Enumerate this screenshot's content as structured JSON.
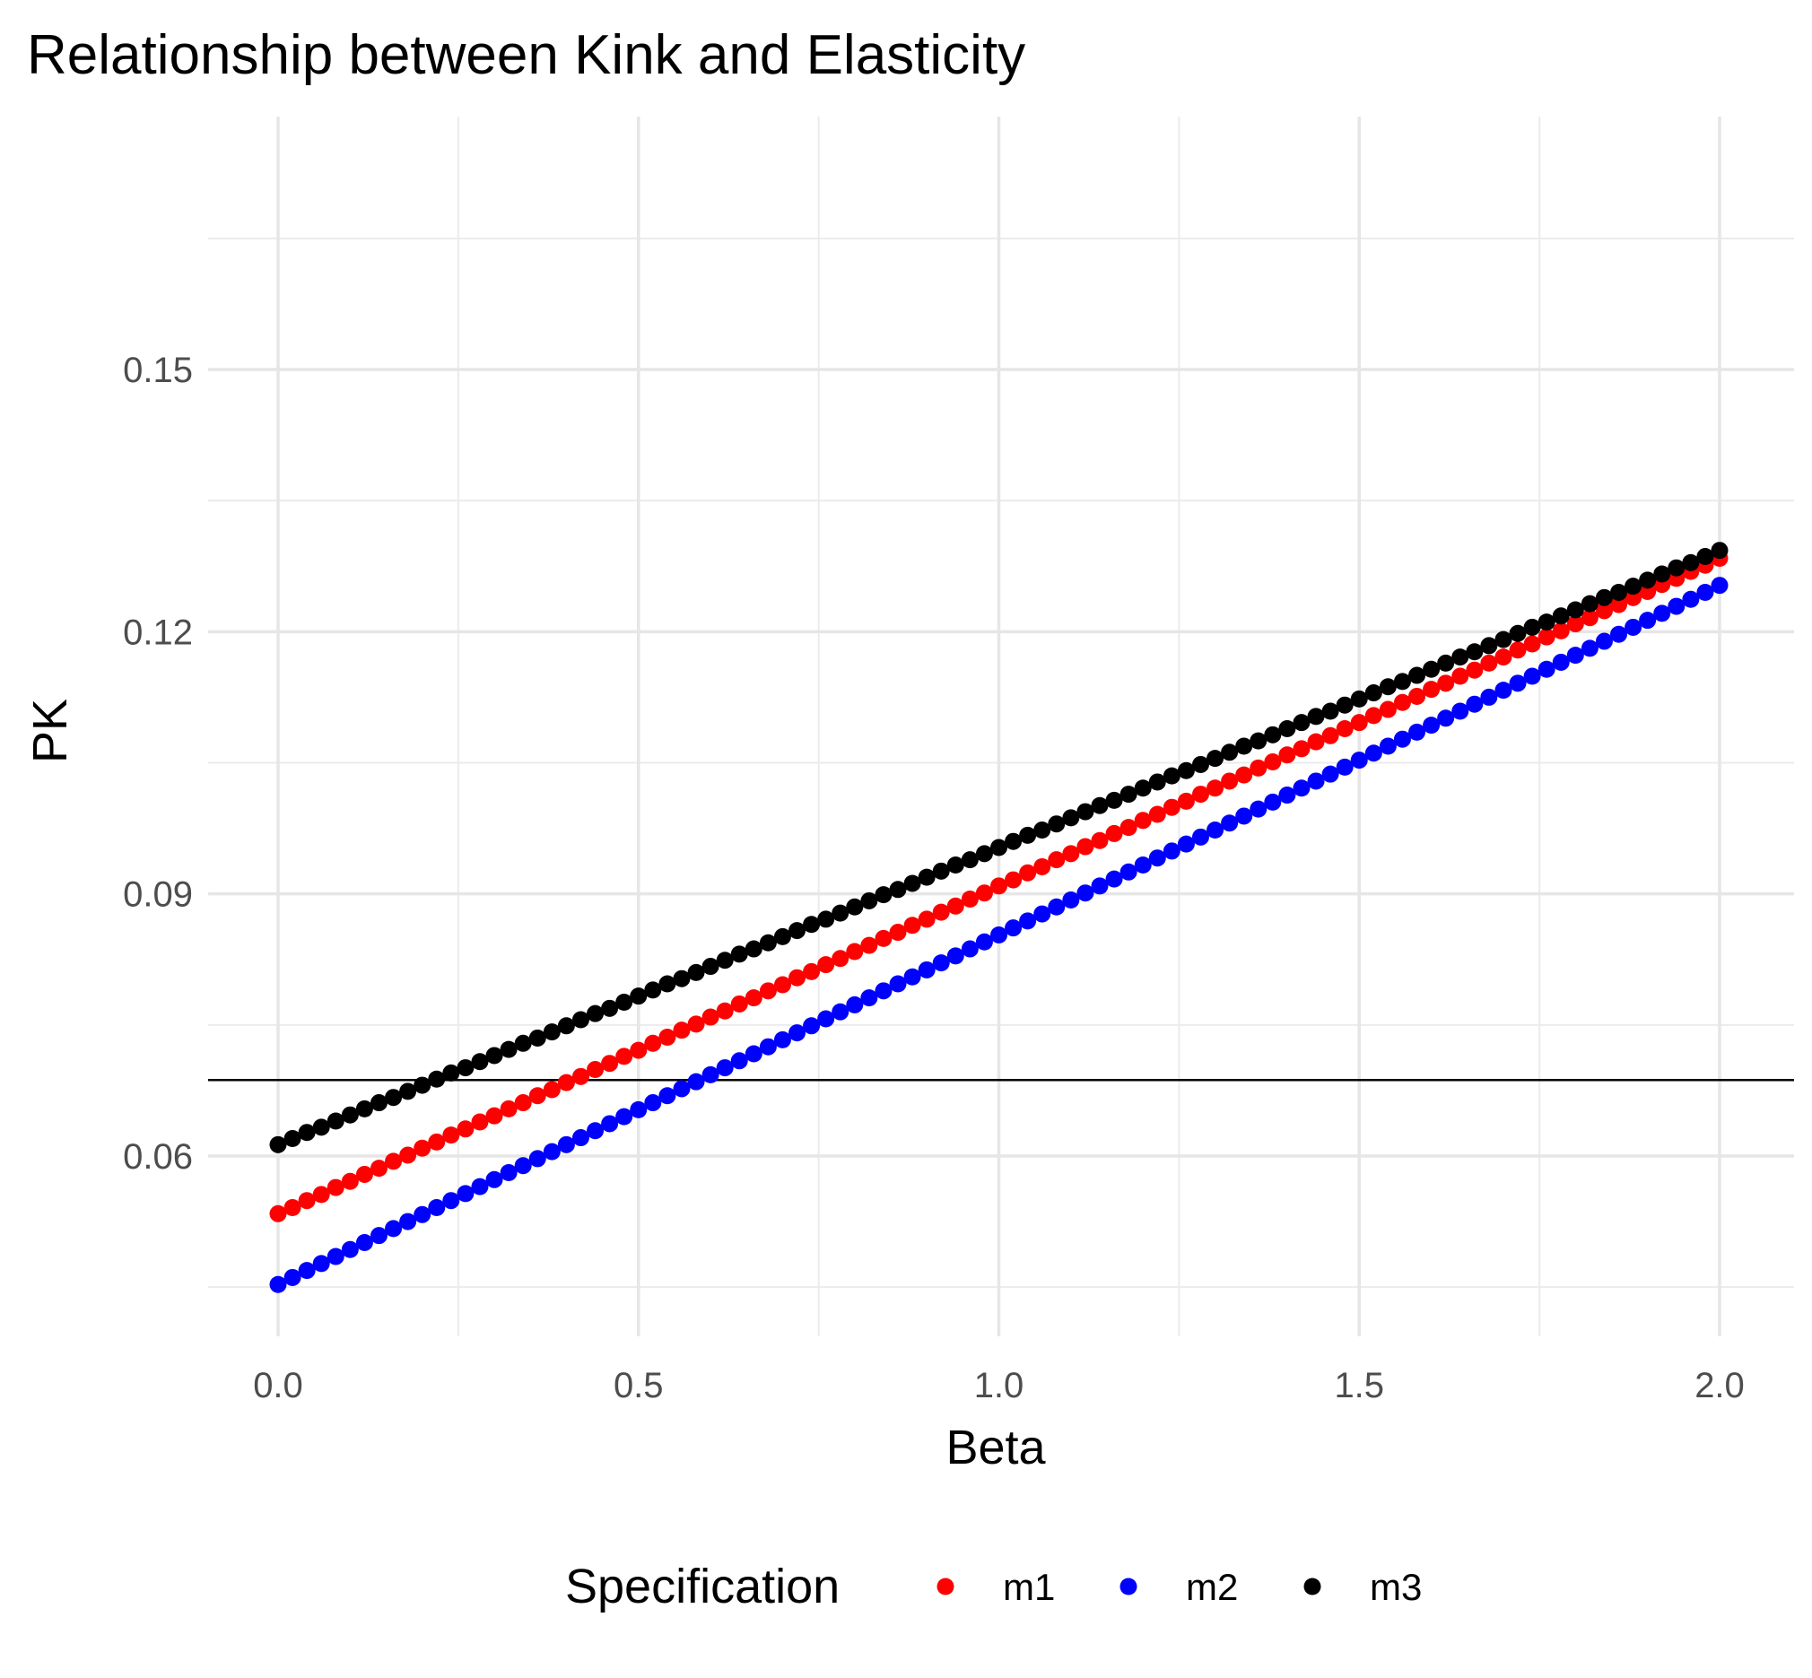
{
  "chart_data": {
    "type": "scatter",
    "title": "Relationship between Kink and Elasticity",
    "xlabel": "Beta",
    "ylabel": "PK",
    "x_ticks": [
      0.0,
      0.5,
      1.0,
      1.5,
      2.0
    ],
    "x_tick_labels": [
      "0.0",
      "0.5",
      "1.0",
      "1.5",
      "2.0"
    ],
    "y_ticks": [
      0.06,
      0.09,
      0.12,
      0.15
    ],
    "y_tick_labels": [
      "0.06",
      "0.09",
      "0.12",
      "0.15"
    ],
    "xlim": [
      -0.1,
      2.1
    ],
    "ylim": [
      0.0415,
      0.1735
    ],
    "grid": true,
    "x": [
      0.0,
      0.02,
      0.04,
      0.06,
      0.08,
      0.1,
      0.12,
      0.14,
      0.16,
      0.18,
      0.2,
      0.22,
      0.24,
      0.26,
      0.28,
      0.3,
      0.32,
      0.34,
      0.36,
      0.38,
      0.4,
      0.42,
      0.44,
      0.46,
      0.48,
      0.5,
      0.52,
      0.54,
      0.56,
      0.58,
      0.6,
      0.62,
      0.64,
      0.66,
      0.68,
      0.7,
      0.72,
      0.74,
      0.76,
      0.78,
      0.8,
      0.82,
      0.84,
      0.86,
      0.88,
      0.9,
      0.92,
      0.94,
      0.96,
      0.98,
      1.0,
      1.02,
      1.04,
      1.06,
      1.08,
      1.1,
      1.12,
      1.14,
      1.16,
      1.18,
      1.2,
      1.22,
      1.24,
      1.26,
      1.28,
      1.3,
      1.32,
      1.34,
      1.36,
      1.38,
      1.4,
      1.42,
      1.44,
      1.46,
      1.48,
      1.5,
      1.52,
      1.54,
      1.56,
      1.58,
      1.6,
      1.62,
      1.64,
      1.66,
      1.68,
      1.7,
      1.72,
      1.74,
      1.76,
      1.78,
      1.8,
      1.82,
      1.84,
      1.86,
      1.88,
      1.9,
      1.92,
      1.94,
      1.96,
      1.98,
      2.0
    ],
    "series": [
      {
        "name": "m1",
        "color": "#ff0000",
        "values": [
          0.0534,
          0.0541,
          0.0549,
          0.0556,
          0.0564,
          0.0571,
          0.0579,
          0.0586,
          0.0594,
          0.0601,
          0.0609,
          0.0616,
          0.0624,
          0.0631,
          0.0639,
          0.0646,
          0.0654,
          0.0661,
          0.0669,
          0.0676,
          0.0684,
          0.0691,
          0.0699,
          0.0706,
          0.0714,
          0.0721,
          0.0729,
          0.0736,
          0.0744,
          0.0751,
          0.0759,
          0.0766,
          0.0774,
          0.0781,
          0.0789,
          0.0796,
          0.0804,
          0.0811,
          0.0819,
          0.0826,
          0.0834,
          0.0841,
          0.0849,
          0.0856,
          0.0864,
          0.0871,
          0.0879,
          0.0886,
          0.0894,
          0.0901,
          0.0909,
          0.0916,
          0.0924,
          0.0931,
          0.0939,
          0.0946,
          0.0954,
          0.0961,
          0.0969,
          0.0976,
          0.0984,
          0.0991,
          0.0999,
          0.1006,
          0.1014,
          0.1021,
          0.1029,
          0.1036,
          0.1044,
          0.1051,
          0.1059,
          0.1066,
          0.1074,
          0.1081,
          0.1089,
          0.1096,
          0.1104,
          0.1111,
          0.1119,
          0.1126,
          0.1134,
          0.1141,
          0.1149,
          0.1156,
          0.1164,
          0.1171,
          0.1179,
          0.1186,
          0.1194,
          0.1201,
          0.1209,
          0.1216,
          0.1224,
          0.1231,
          0.1239,
          0.1246,
          0.1254,
          0.1261,
          0.1269,
          0.1276,
          0.1284
        ]
      },
      {
        "name": "m2",
        "color": "#0000ff",
        "values": [
          0.0453,
          0.0461,
          0.0469,
          0.0477,
          0.0485,
          0.0493,
          0.0501,
          0.0509,
          0.0517,
          0.0525,
          0.0533,
          0.0541,
          0.0549,
          0.0557,
          0.0565,
          0.0573,
          0.0581,
          0.0589,
          0.0597,
          0.0605,
          0.0613,
          0.0621,
          0.0629,
          0.0637,
          0.0645,
          0.0653,
          0.0661,
          0.0669,
          0.0677,
          0.0685,
          0.0693,
          0.0701,
          0.0709,
          0.0717,
          0.0725,
          0.0733,
          0.0741,
          0.0749,
          0.0757,
          0.0765,
          0.0773,
          0.0781,
          0.0789,
          0.0797,
          0.0805,
          0.0813,
          0.0821,
          0.0829,
          0.0837,
          0.0845,
          0.0853,
          0.0861,
          0.0869,
          0.0877,
          0.0885,
          0.0893,
          0.0901,
          0.0909,
          0.0917,
          0.0925,
          0.0933,
          0.0941,
          0.0949,
          0.0957,
          0.0965,
          0.0973,
          0.0981,
          0.0989,
          0.0997,
          0.1005,
          0.1013,
          0.1021,
          0.1029,
          0.1037,
          0.1045,
          0.1053,
          0.1061,
          0.1069,
          0.1077,
          0.1085,
          0.1093,
          0.1101,
          0.1109,
          0.1117,
          0.1125,
          0.1133,
          0.1141,
          0.1149,
          0.1157,
          0.1165,
          0.1173,
          0.1181,
          0.1189,
          0.1197,
          0.1205,
          0.1213,
          0.1221,
          0.1229,
          0.1237,
          0.1245,
          0.1253
        ]
      },
      {
        "name": "m3",
        "color": "#000000",
        "values": [
          0.0613,
          0.062,
          0.0627,
          0.0633,
          0.064,
          0.0647,
          0.0654,
          0.0661,
          0.0667,
          0.0674,
          0.0681,
          0.0688,
          0.0695,
          0.0701,
          0.0708,
          0.0715,
          0.0722,
          0.0729,
          0.0735,
          0.0742,
          0.0749,
          0.0756,
          0.0763,
          0.0769,
          0.0776,
          0.0783,
          0.079,
          0.0797,
          0.0803,
          0.081,
          0.0817,
          0.0824,
          0.0831,
          0.0837,
          0.0844,
          0.0851,
          0.0858,
          0.0865,
          0.0871,
          0.0878,
          0.0885,
          0.0892,
          0.0899,
          0.0905,
          0.0912,
          0.0919,
          0.0926,
          0.0933,
          0.0939,
          0.0946,
          0.0953,
          0.096,
          0.0967,
          0.0973,
          0.098,
          0.0987,
          0.0994,
          0.1001,
          0.1007,
          0.1014,
          0.1021,
          0.1028,
          0.1035,
          0.1041,
          0.1048,
          0.1055,
          0.1062,
          0.1069,
          0.1075,
          0.1082,
          0.1089,
          0.1096,
          0.1103,
          0.1109,
          0.1116,
          0.1123,
          0.113,
          0.1137,
          0.1143,
          0.115,
          0.1157,
          0.1164,
          0.1171,
          0.1177,
          0.1184,
          0.1191,
          0.1198,
          0.1205,
          0.1211,
          0.1218,
          0.1225,
          0.1232,
          0.1239,
          0.1245,
          0.1252,
          0.1259,
          0.1266,
          0.1273,
          0.1279,
          0.1286,
          0.1293
        ]
      }
    ],
    "hline": {
      "y": 0.0687,
      "color": "#000000"
    },
    "legend": {
      "title": "Specification",
      "position": "bottom",
      "items": [
        "m1",
        "m2",
        "m3"
      ]
    }
  }
}
